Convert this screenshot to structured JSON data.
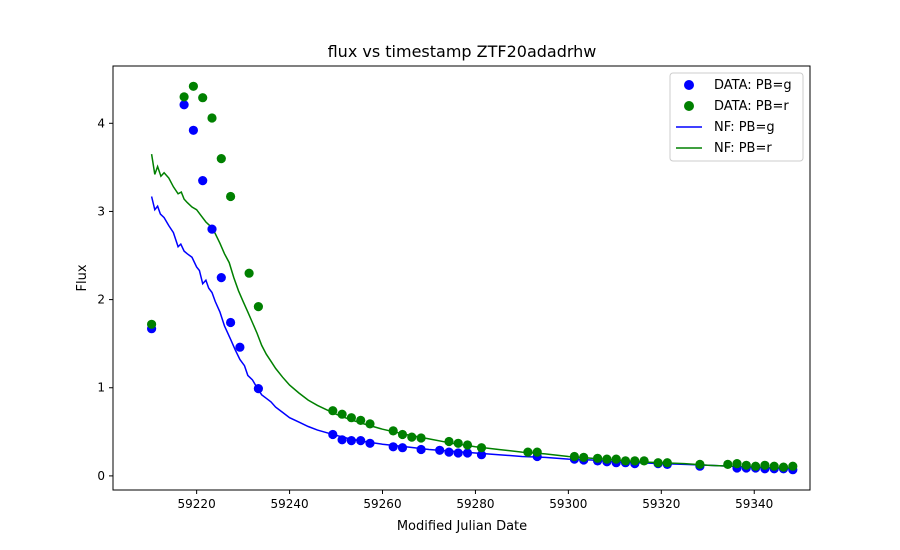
{
  "chart_data": {
    "type": "scatter",
    "title": "flux vs timestamp ZTF20adadrhw",
    "xlabel": "Modified Julian Date",
    "ylabel": "Flux",
    "xlim": [
      59202,
      59352
    ],
    "ylim": [
      -0.16,
      4.65
    ],
    "xticks": [
      59220,
      59240,
      59260,
      59280,
      59300,
      59320,
      59340
    ],
    "yticks": [
      0,
      1,
      2,
      3,
      4
    ],
    "grid": false,
    "legend_position": "top-right",
    "colors": {
      "g": "#0000ff",
      "r": "#008000"
    },
    "legend": [
      "DATA: PB=g",
      "DATA: PB=r",
      "NF: PB=g",
      "NF: PB=r"
    ],
    "series": [
      {
        "name": "DATA: PB=g",
        "kind": "scatter",
        "color": "#0000ff",
        "points": [
          [
            59210.3,
            1.67
          ],
          [
            59217.3,
            4.21
          ],
          [
            59219.3,
            3.92
          ],
          [
            59221.3,
            3.35
          ],
          [
            59223.3,
            2.8
          ],
          [
            59225.3,
            2.25
          ],
          [
            59227.3,
            1.74
          ],
          [
            59229.3,
            1.46
          ],
          [
            59233.3,
            0.99
          ],
          [
            59249.3,
            0.47
          ],
          [
            59251.3,
            0.41
          ],
          [
            59253.3,
            0.4
          ],
          [
            59255.3,
            0.4
          ],
          [
            59257.3,
            0.37
          ],
          [
            59262.3,
            0.33
          ],
          [
            59264.3,
            0.32
          ],
          [
            59268.3,
            0.3
          ],
          [
            59272.3,
            0.29
          ],
          [
            59274.3,
            0.27
          ],
          [
            59276.3,
            0.26
          ],
          [
            59278.3,
            0.26
          ],
          [
            59281.3,
            0.24
          ],
          [
            59293.3,
            0.22
          ],
          [
            59301.3,
            0.19
          ],
          [
            59303.3,
            0.18
          ],
          [
            59306.3,
            0.17
          ],
          [
            59308.3,
            0.16
          ],
          [
            59310.3,
            0.15
          ],
          [
            59312.3,
            0.15
          ],
          [
            59314.3,
            0.14
          ],
          [
            59319.3,
            0.14
          ],
          [
            59321.3,
            0.13
          ],
          [
            59328.3,
            0.11
          ],
          [
            59336.3,
            0.09
          ],
          [
            59338.3,
            0.09
          ],
          [
            59340.3,
            0.09
          ],
          [
            59342.3,
            0.08
          ],
          [
            59344.3,
            0.08
          ],
          [
            59346.3,
            0.08
          ],
          [
            59348.3,
            0.07
          ]
        ]
      },
      {
        "name": "DATA: PB=r",
        "kind": "scatter",
        "color": "#008000",
        "points": [
          [
            59210.3,
            1.72
          ],
          [
            59217.3,
            4.3
          ],
          [
            59219.3,
            4.42
          ],
          [
            59221.3,
            4.29
          ],
          [
            59223.3,
            4.06
          ],
          [
            59225.3,
            3.6
          ],
          [
            59227.3,
            3.17
          ],
          [
            59231.3,
            2.3
          ],
          [
            59233.3,
            1.92
          ],
          [
            59249.3,
            0.74
          ],
          [
            59251.3,
            0.7
          ],
          [
            59253.3,
            0.66
          ],
          [
            59255.3,
            0.63
          ],
          [
            59257.3,
            0.59
          ],
          [
            59262.3,
            0.51
          ],
          [
            59264.3,
            0.47
          ],
          [
            59266.3,
            0.44
          ],
          [
            59268.3,
            0.43
          ],
          [
            59274.3,
            0.39
          ],
          [
            59276.3,
            0.37
          ],
          [
            59278.3,
            0.35
          ],
          [
            59281.3,
            0.32
          ],
          [
            59291.3,
            0.27
          ],
          [
            59293.3,
            0.27
          ],
          [
            59301.3,
            0.22
          ],
          [
            59303.3,
            0.21
          ],
          [
            59306.3,
            0.2
          ],
          [
            59308.3,
            0.19
          ],
          [
            59310.3,
            0.19
          ],
          [
            59312.3,
            0.17
          ],
          [
            59314.3,
            0.17
          ],
          [
            59316.3,
            0.17
          ],
          [
            59319.3,
            0.15
          ],
          [
            59321.3,
            0.15
          ],
          [
            59328.3,
            0.13
          ],
          [
            59334.3,
            0.13
          ],
          [
            59336.3,
            0.14
          ],
          [
            59338.3,
            0.12
          ],
          [
            59340.3,
            0.11
          ],
          [
            59342.3,
            0.12
          ],
          [
            59344.3,
            0.11
          ],
          [
            59346.3,
            0.1
          ],
          [
            59348.3,
            0.11
          ]
        ]
      },
      {
        "name": "NF: PB=g",
        "kind": "line",
        "color": "#0000ff",
        "points": [
          [
            59210.3,
            3.17
          ],
          [
            59211.0,
            3.02
          ],
          [
            59211.6,
            3.06
          ],
          [
            59212.2,
            2.97
          ],
          [
            59213.0,
            2.93
          ],
          [
            59214.0,
            2.84
          ],
          [
            59215.0,
            2.76
          ],
          [
            59216.0,
            2.6
          ],
          [
            59216.6,
            2.63
          ],
          [
            59217.3,
            2.55
          ],
          [
            59218.0,
            2.52
          ],
          [
            59219.0,
            2.48
          ],
          [
            59220.0,
            2.37
          ],
          [
            59220.6,
            2.33
          ],
          [
            59221.3,
            2.18
          ],
          [
            59222.0,
            2.22
          ],
          [
            59222.6,
            2.13
          ],
          [
            59223.3,
            2.08
          ],
          [
            59224.0,
            1.98
          ],
          [
            59225.0,
            1.86
          ],
          [
            59226.0,
            1.7
          ],
          [
            59227.3,
            1.55
          ],
          [
            59228.3,
            1.43
          ],
          [
            59229.3,
            1.32
          ],
          [
            59230.3,
            1.25
          ],
          [
            59231.0,
            1.14
          ],
          [
            59232.0,
            1.09
          ],
          [
            59233.0,
            1.0
          ],
          [
            59234.0,
            0.92
          ],
          [
            59235.0,
            0.88
          ],
          [
            59236.0,
            0.84
          ],
          [
            59237.0,
            0.78
          ],
          [
            59238.5,
            0.72
          ],
          [
            59240.0,
            0.66
          ],
          [
            59242.0,
            0.61
          ],
          [
            59244.0,
            0.56
          ],
          [
            59246.0,
            0.52
          ],
          [
            59248.0,
            0.49
          ],
          [
            59250.0,
            0.46
          ],
          [
            59253.0,
            0.42
          ],
          [
            59256.0,
            0.39
          ],
          [
            59260.0,
            0.36
          ],
          [
            59265.0,
            0.33
          ],
          [
            59270.0,
            0.3
          ],
          [
            59275.0,
            0.28
          ],
          [
            59280.0,
            0.26
          ],
          [
            59285.0,
            0.24
          ],
          [
            59290.0,
            0.22
          ],
          [
            59295.0,
            0.21
          ],
          [
            59300.0,
            0.19
          ],
          [
            59305.0,
            0.18
          ],
          [
            59310.0,
            0.16
          ],
          [
            59315.0,
            0.15
          ],
          [
            59320.0,
            0.14
          ],
          [
            59325.0,
            0.13
          ],
          [
            59330.0,
            0.12
          ],
          [
            59335.0,
            0.11
          ],
          [
            59340.0,
            0.1
          ],
          [
            59345.0,
            0.09
          ],
          [
            59348.3,
            0.08
          ]
        ]
      },
      {
        "name": "NF: PB=r",
        "kind": "line",
        "color": "#008000",
        "points": [
          [
            59210.3,
            3.65
          ],
          [
            59211.0,
            3.42
          ],
          [
            59211.6,
            3.51
          ],
          [
            59212.3,
            3.4
          ],
          [
            59213.0,
            3.44
          ],
          [
            59214.0,
            3.38
          ],
          [
            59215.0,
            3.28
          ],
          [
            59216.0,
            3.2
          ],
          [
            59216.7,
            3.22
          ],
          [
            59217.3,
            3.14
          ],
          [
            59218.0,
            3.1
          ],
          [
            59219.0,
            3.05
          ],
          [
            59220.0,
            3.02
          ],
          [
            59221.0,
            2.95
          ],
          [
            59222.0,
            2.88
          ],
          [
            59223.0,
            2.83
          ],
          [
            59224.0,
            2.75
          ],
          [
            59225.0,
            2.64
          ],
          [
            59226.0,
            2.52
          ],
          [
            59227.0,
            2.42
          ],
          [
            59228.0,
            2.25
          ],
          [
            59229.0,
            2.1
          ],
          [
            59230.0,
            1.98
          ],
          [
            59231.0,
            1.86
          ],
          [
            59232.0,
            1.74
          ],
          [
            59233.0,
            1.62
          ],
          [
            59234.0,
            1.48
          ],
          [
            59235.0,
            1.38
          ],
          [
            59236.0,
            1.3
          ],
          [
            59237.0,
            1.22
          ],
          [
            59238.5,
            1.12
          ],
          [
            59240.0,
            1.03
          ],
          [
            59242.0,
            0.94
          ],
          [
            59244.0,
            0.86
          ],
          [
            59246.0,
            0.8
          ],
          [
            59248.0,
            0.75
          ],
          [
            59250.0,
            0.7
          ],
          [
            59253.0,
            0.64
          ],
          [
            59256.0,
            0.59
          ],
          [
            59260.0,
            0.53
          ],
          [
            59265.0,
            0.47
          ],
          [
            59270.0,
            0.42
          ],
          [
            59275.0,
            0.37
          ],
          [
            59280.0,
            0.33
          ],
          [
            59285.0,
            0.3
          ],
          [
            59290.0,
            0.27
          ],
          [
            59295.0,
            0.25
          ],
          [
            59300.0,
            0.22
          ],
          [
            59305.0,
            0.2
          ],
          [
            59310.0,
            0.18
          ],
          [
            59315.0,
            0.16
          ],
          [
            59320.0,
            0.15
          ],
          [
            59325.0,
            0.14
          ],
          [
            59330.0,
            0.12
          ],
          [
            59335.0,
            0.11
          ],
          [
            59340.0,
            0.1
          ],
          [
            59345.0,
            0.09
          ],
          [
            59348.3,
            0.09
          ]
        ]
      }
    ]
  }
}
